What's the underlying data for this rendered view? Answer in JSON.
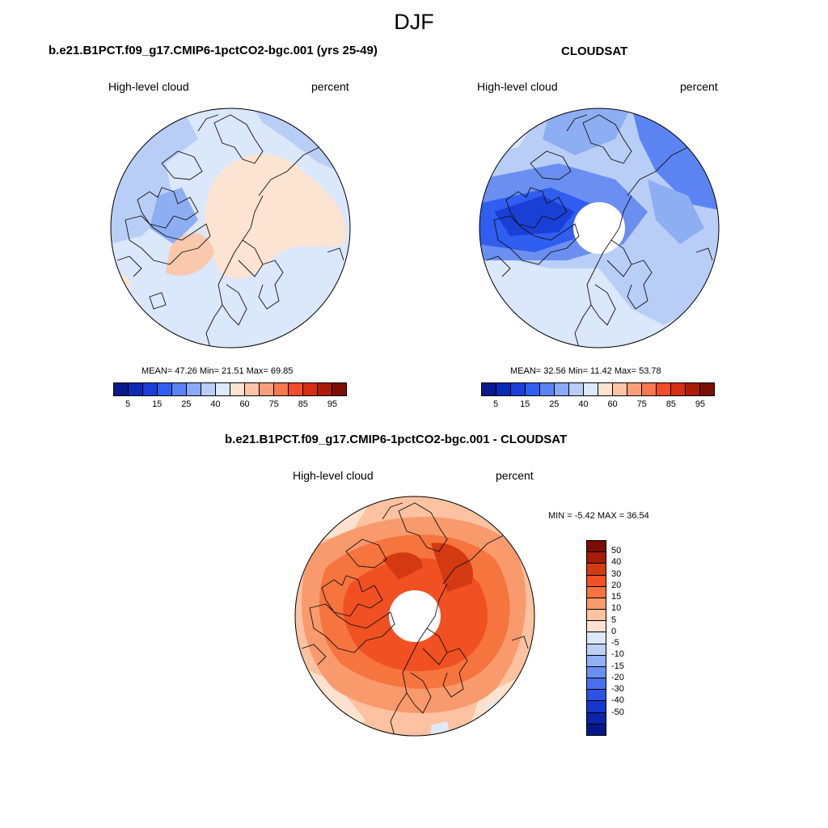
{
  "suptitle": "DJF",
  "panels": [
    {
      "title": "b.e21.B1PCT.f09_g17.CMIP6-1pctCO2-bgc.001 (yrs 25-49)",
      "left_label": "High-level cloud",
      "right_label": "percent",
      "stats": "MEAN=  47.26  Min=  21.51  Max=  69.85"
    },
    {
      "title": "CLOUDSAT",
      "left_label": "High-level cloud",
      "right_label": "percent",
      "stats": "MEAN=  32.56  Min=  11.42  Max=  53.78"
    },
    {
      "title": "b.e21.B1PCT.f09_g17.CMIP6-1pctCO2-bgc.001 - CLOUDSAT",
      "left_label": "High-level cloud",
      "right_label": "percent",
      "stats": "MIN =  -5.42 MAX =  36.54"
    }
  ],
  "colorbar_abs": {
    "colors": [
      "#0a1a8c",
      "#0c2ab4",
      "#1a3fd6",
      "#2f5ef0",
      "#5b84f2",
      "#8aaaf4",
      "#b8cdf7",
      "#dde8fa",
      "#fde3d2",
      "#fcc4a6",
      "#f99f7c",
      "#f67850",
      "#ef4e26",
      "#d62e10",
      "#ab1c08",
      "#7c0e04"
    ],
    "tick_labels": [
      "5",
      "15",
      "25",
      "40",
      "60",
      "75",
      "85",
      "95"
    ]
  },
  "colorbar_diff": {
    "colors": [
      "#7a0c04",
      "#a81d08",
      "#d43a12",
      "#f15022",
      "#f6743e",
      "#f99a6d",
      "#fcc2a1",
      "#fde2cf",
      "#dde8fa",
      "#bdd0f7",
      "#92b0f4",
      "#6b8ff1",
      "#4a6ff0",
      "#2b52e5",
      "#1637cc",
      "#0b24a8",
      "#061886"
    ],
    "tick_labels": [
      "50",
      "40",
      "30",
      "20",
      "15",
      "10",
      "5",
      "0",
      "-5",
      "-10",
      "-15",
      "-20",
      "-30",
      "-40",
      "-50"
    ]
  },
  "chart_data": [
    {
      "type": "heatmap",
      "title": "b.e21.B1PCT.f09_g17.CMIP6-1pctCO2-bgc.001 (yrs 25-49)",
      "variable": "High-level cloud",
      "units": "percent",
      "projection": "north polar stereographic",
      "mean": 47.26,
      "min": 21.51,
      "max": 69.85,
      "contour_levels": [
        5,
        10,
        15,
        20,
        25,
        30,
        40,
        50,
        60,
        65,
        70,
        75,
        80,
        85,
        90,
        95
      ]
    },
    {
      "type": "heatmap",
      "title": "CLOUDSAT",
      "variable": "High-level cloud",
      "units": "percent",
      "projection": "north polar stereographic",
      "mean": 32.56,
      "min": 11.42,
      "max": 53.78,
      "contour_levels": [
        5,
        10,
        15,
        20,
        25,
        30,
        40,
        50,
        60,
        65,
        70,
        75,
        80,
        85,
        90,
        95
      ]
    },
    {
      "type": "heatmap",
      "title": "b.e21.B1PCT.f09_g17.CMIP6-1pctCO2-bgc.001 - CLOUDSAT",
      "variable": "High-level cloud",
      "units": "percent",
      "projection": "north polar stereographic",
      "min": -5.42,
      "max": 36.54,
      "contour_levels": [
        -50,
        -40,
        -30,
        -20,
        -15,
        -10,
        -5,
        0,
        5,
        10,
        15,
        20,
        30,
        40,
        50
      ]
    }
  ]
}
